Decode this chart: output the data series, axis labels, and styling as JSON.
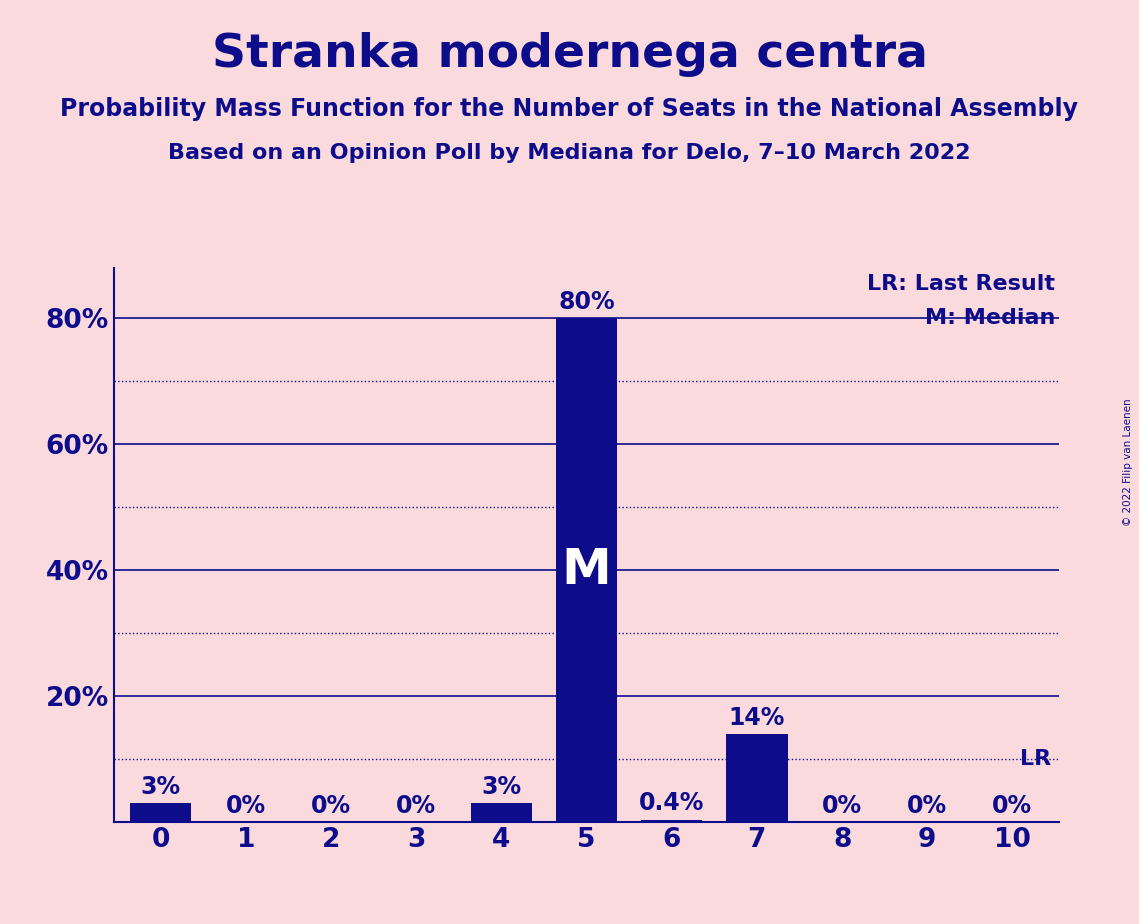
{
  "title": "Stranka modernega centra",
  "subtitle1": "Probability Mass Function for the Number of Seats in the National Assembly",
  "subtitle2": "Based on an Opinion Poll by Mediana for Delo, 7–10 March 2022",
  "copyright": "© 2022 Filip van Laenen",
  "categories": [
    0,
    1,
    2,
    3,
    4,
    5,
    6,
    7,
    8,
    9,
    10
  ],
  "values": [
    0.03,
    0.0,
    0.0,
    0.0,
    0.03,
    0.8,
    0.004,
    0.14,
    0.0,
    0.0,
    0.0
  ],
  "bar_labels": [
    "3%",
    "0%",
    "0%",
    "0%",
    "3%",
    "80%",
    "0.4%",
    "14%",
    "0%",
    "0%",
    "0%"
  ],
  "bar_color": "#0d0d8b",
  "background_color": "#fadadd",
  "text_color": "#0d0d8b",
  "median_value": 5,
  "last_result_pct": 0.1,
  "legend_lr": "LR: Last Result",
  "legend_m": "M: Median",
  "median_label": "M",
  "lr_label": "LR",
  "ylim": [
    0,
    0.88
  ],
  "solid_lines": [
    0.2,
    0.4,
    0.6,
    0.8
  ],
  "dotted_lines": [
    0.1,
    0.3,
    0.5,
    0.7
  ],
  "ytick_positions": [
    0.2,
    0.4,
    0.6,
    0.8
  ],
  "ytick_labels": [
    "20%",
    "40%",
    "60%",
    "80%"
  ],
  "title_fontsize": 34,
  "subtitle_fontsize": 17,
  "tick_fontsize": 19,
  "bar_label_fontsize": 17,
  "legend_fontsize": 16,
  "median_fontsize": 36
}
